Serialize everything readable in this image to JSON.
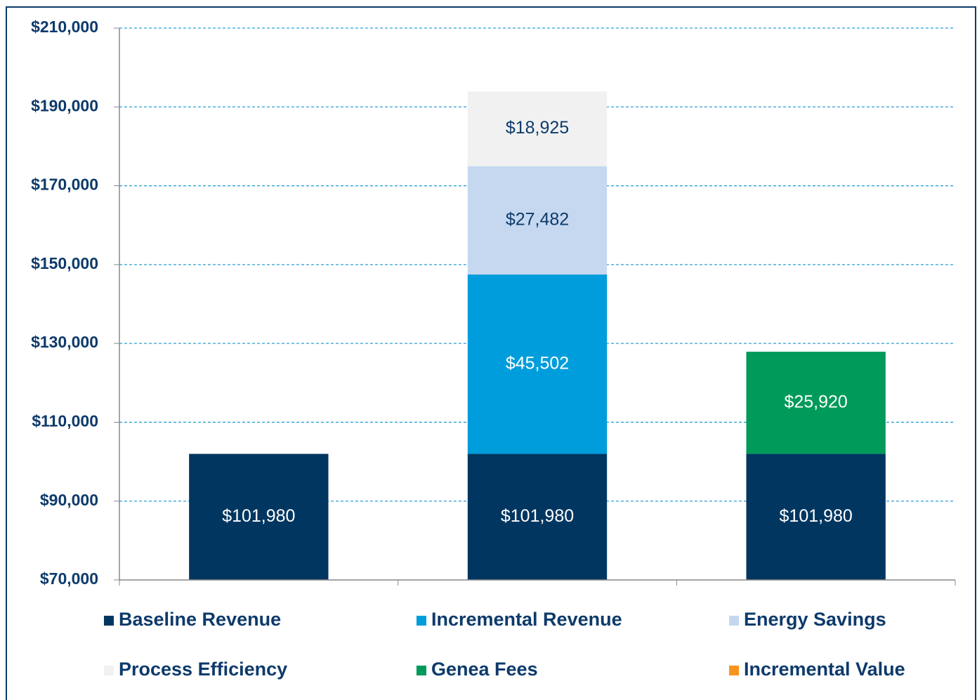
{
  "chart_data": {
    "type": "stacked_bar",
    "categories": [
      null,
      null,
      null
    ],
    "series": [
      {
        "name": "Baseline Revenue",
        "color": "#003660",
        "label_color": "#ffffff",
        "values": [
          101980,
          101980,
          101980
        ],
        "value_labels": [
          "$101,980",
          "$101,980",
          "$101,980"
        ]
      },
      {
        "name": "Incremental Revenue",
        "color": "#009ddc",
        "label_color": "#ffffff",
        "values": [
          null,
          45502,
          null
        ],
        "value_labels": [
          null,
          "$45,502",
          null
        ]
      },
      {
        "name": "Energy Savings",
        "color": "#c6d8f0",
        "label_color": "#0d3a6b",
        "values": [
          null,
          27482,
          null
        ],
        "value_labels": [
          null,
          "$27,482",
          null
        ]
      },
      {
        "name": "Process Efficiency",
        "color": "#f1f1f1",
        "label_color": "#0d3a6b",
        "values": [
          null,
          18925,
          null
        ],
        "value_labels": [
          null,
          "$18,925",
          null
        ]
      },
      {
        "name": "Genea Fees",
        "color": "#009a5a",
        "label_color": "#ffffff",
        "values": [
          null,
          null,
          25920
        ],
        "value_labels": [
          null,
          null,
          "$25,920"
        ]
      },
      {
        "name": "Incremental Value",
        "color": "#f7941d",
        "label_color": "#ffffff",
        "values": [
          null,
          null,
          null
        ],
        "value_labels": [
          null,
          null,
          null
        ]
      }
    ],
    "ylim": [
      70000,
      210000
    ],
    "yticks": [
      {
        "value": 70000,
        "label": "$70,000"
      },
      {
        "value": 90000,
        "label": "$90,000"
      },
      {
        "value": 110000,
        "label": "$110,000"
      },
      {
        "value": 130000,
        "label": "$130,000"
      },
      {
        "value": 150000,
        "label": "$150,000"
      },
      {
        "value": 170000,
        "label": "$170,000"
      },
      {
        "value": 190000,
        "label": "$190,000"
      },
      {
        "value": 210000,
        "label": "$210,000"
      }
    ],
    "grid": true,
    "legend": "bottom"
  }
}
